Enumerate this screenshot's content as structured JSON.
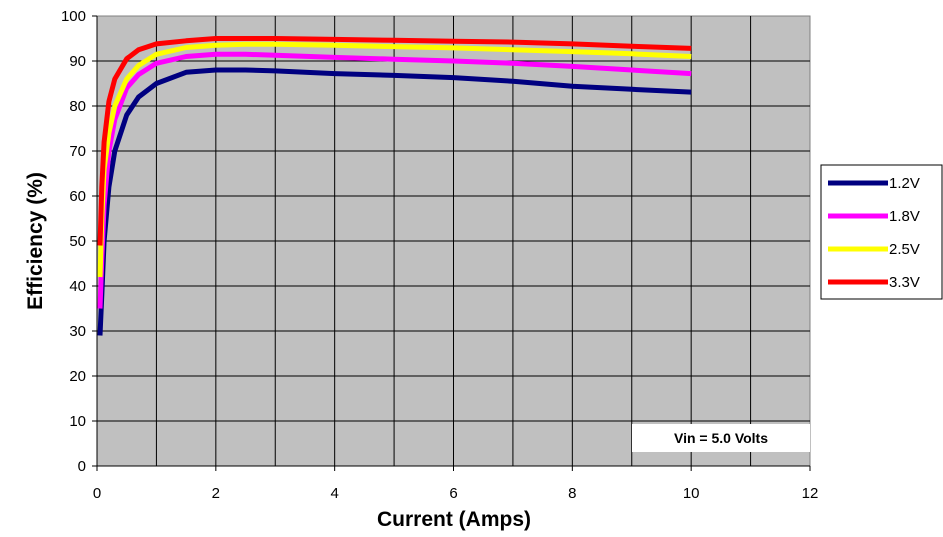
{
  "chart_data": {
    "type": "line",
    "title": "",
    "xlabel": "Current (Amps)",
    "ylabel": "Efficiency (%)",
    "xlim": [
      0,
      12
    ],
    "ylim": [
      0,
      100
    ],
    "xticks": [
      0,
      2,
      4,
      6,
      8,
      10,
      12
    ],
    "yticks": [
      0,
      10,
      20,
      30,
      40,
      50,
      60,
      70,
      80,
      90,
      100
    ],
    "grid": true,
    "legend_position": "right",
    "plot_background": "#c0c0c0",
    "annotation": "Vin = 5.0 Volts",
    "series": [
      {
        "name": "1.2V",
        "color": "#000080",
        "x": [
          0.05,
          0.08,
          0.12,
          0.2,
          0.3,
          0.5,
          0.7,
          1.0,
          1.5,
          2.0,
          2.5,
          3.0,
          4.0,
          5.0,
          6.0,
          7.0,
          8.0,
          9.0,
          10.0
        ],
        "y": [
          29,
          38,
          50,
          62,
          70,
          78,
          82,
          85,
          87.5,
          88,
          88,
          87.8,
          87.2,
          86.8,
          86.3,
          85.5,
          84.4,
          83.7,
          83.1
        ]
      },
      {
        "name": "1.8V",
        "color": "#ff00ff",
        "x": [
          0.05,
          0.08,
          0.12,
          0.2,
          0.3,
          0.5,
          0.7,
          1.0,
          1.5,
          2.0,
          2.5,
          3.0,
          4.0,
          5.0,
          6.0,
          7.0,
          8.0,
          9.0,
          10.0
        ],
        "y": [
          35,
          46,
          58,
          70,
          77,
          84,
          87,
          89.5,
          91,
          91.5,
          91.5,
          91.3,
          90.8,
          90.4,
          90,
          89.5,
          88.8,
          88,
          87.2
        ]
      },
      {
        "name": "2.5V",
        "color": "#ffff00",
        "x": [
          0.05,
          0.08,
          0.12,
          0.2,
          0.3,
          0.5,
          0.7,
          1.0,
          1.5,
          2.0,
          2.5,
          3.0,
          4.0,
          5.0,
          6.0,
          7.0,
          8.0,
          9.0,
          10.0
        ],
        "y": [
          42,
          55,
          66,
          74,
          80,
          86,
          89,
          91.5,
          93,
          93.5,
          93.7,
          93.7,
          93.5,
          93.2,
          92.9,
          92.5,
          92.1,
          91.6,
          91
        ]
      },
      {
        "name": "3.3V",
        "color": "#ff0000",
        "x": [
          0.05,
          0.08,
          0.12,
          0.2,
          0.3,
          0.5,
          0.7,
          1.0,
          1.5,
          2.0,
          2.5,
          3.0,
          4.0,
          5.0,
          6.0,
          7.0,
          8.0,
          9.0,
          10.0
        ],
        "y": [
          49,
          62,
          72,
          81,
          86,
          90.5,
          92.5,
          93.8,
          94.5,
          95,
          95,
          95,
          94.8,
          94.6,
          94.4,
          94.2,
          93.8,
          93.3,
          92.8
        ]
      }
    ]
  }
}
